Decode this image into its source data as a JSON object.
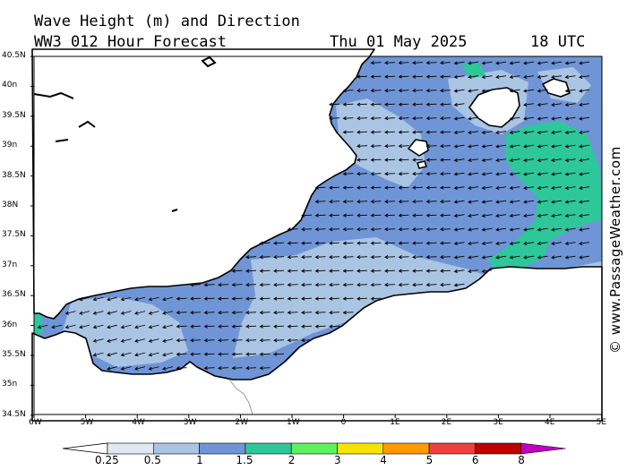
{
  "header": {
    "title_line1": "Wave Height (m) and Direction",
    "title_line2": "WW3 012 Hour Forecast",
    "date": "Thu 01 May 2025",
    "time": "18 UTC"
  },
  "credit": "© www.PassageWeather.com",
  "axes": {
    "lat_labels": [
      "40.5N",
      "40n",
      "39.5N",
      "39n",
      "38.5N",
      "38N",
      "37.5N",
      "37n",
      "36.5N",
      "36n",
      "35.5N",
      "35n",
      "34.5N"
    ],
    "lon_labels": [
      "6W",
      "5W",
      "4W",
      "3W",
      "2W",
      "1W",
      "0",
      "1E",
      "2E",
      "3E",
      "4E",
      "5E"
    ]
  },
  "legend": {
    "ticks": [
      "0.25",
      "0.5",
      "1",
      "1.5",
      "2",
      "3",
      "4",
      "5",
      "6",
      "8"
    ],
    "colors": [
      "#dfe8f5",
      "#aac4e3",
      "#6f95d6",
      "#2dc79a",
      "#5ef25e",
      "#f6e400",
      "#ff9a00",
      "#ee4040",
      "#c00000",
      "#c000c0"
    ]
  },
  "colors": {
    "sea_1_1_5": "#6f95d6",
    "sea_0_5_1": "#aac4e3",
    "sea_1_5_2": "#2dc79a",
    "land": "#ffffff",
    "arrow": "#000000"
  }
}
